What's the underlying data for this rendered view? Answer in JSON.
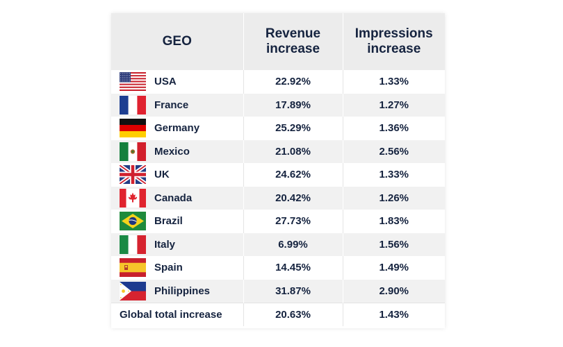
{
  "chart_data": {
    "type": "table",
    "columns": [
      "GEO",
      "Revenue increase",
      "Impressions increase"
    ],
    "rows": [
      {
        "geo": "USA",
        "flag": "usa-flag-icon",
        "revenue": "22.92%",
        "impressions": "1.33%"
      },
      {
        "geo": "France",
        "flag": "france-flag-icon",
        "revenue": "17.89%",
        "impressions": "1.27%"
      },
      {
        "geo": "Germany",
        "flag": "germany-flag-icon",
        "revenue": "25.29%",
        "impressions": "1.36%"
      },
      {
        "geo": "Mexico",
        "flag": "mexico-flag-icon",
        "revenue": "21.08%",
        "impressions": "2.56%"
      },
      {
        "geo": "UK",
        "flag": "uk-flag-icon",
        "revenue": "24.62%",
        "impressions": "1.33%"
      },
      {
        "geo": "Canada",
        "flag": "canada-flag-icon",
        "revenue": "20.42%",
        "impressions": "1.26%"
      },
      {
        "geo": "Brazil",
        "flag": "brazil-flag-icon",
        "revenue": "27.73%",
        "impressions": "1.83%"
      },
      {
        "geo": "Italy",
        "flag": "italy-flag-icon",
        "revenue": "6.99%",
        "impressions": "1.56%"
      },
      {
        "geo": "Spain",
        "flag": "spain-flag-icon",
        "revenue": "14.45%",
        "impressions": "1.49%"
      },
      {
        "geo": "Philippines",
        "flag": "philippines-flag-icon",
        "revenue": "31.87%",
        "impressions": "2.90%"
      }
    ],
    "total": {
      "label": "Global total increase",
      "revenue": "20.63%",
      "impressions": "1.43%"
    }
  },
  "colors": {
    "text": "#15233f",
    "header_bg": "#ececec",
    "stripe_bg": "#f1f1f1"
  }
}
